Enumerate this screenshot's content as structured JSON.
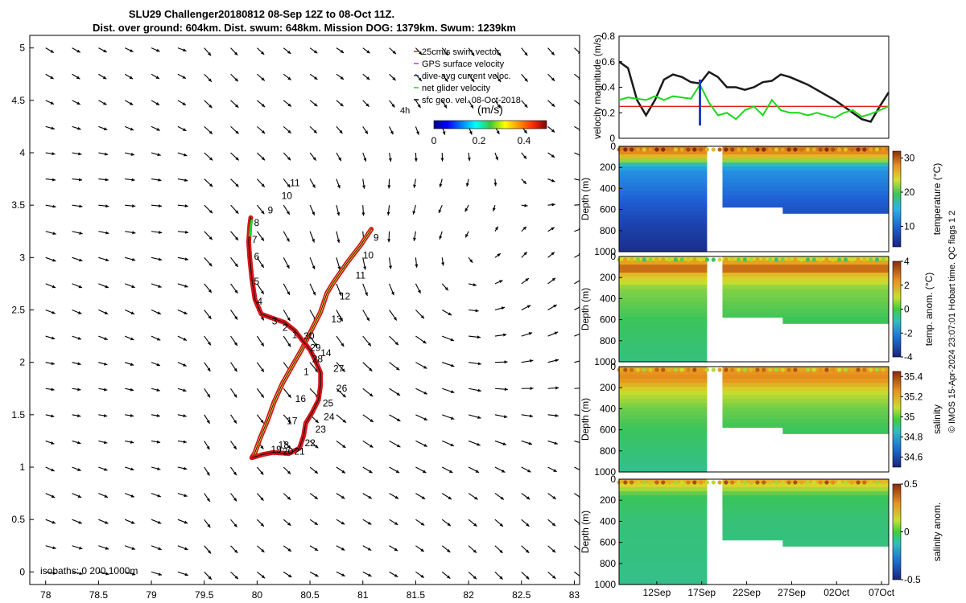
{
  "title": {
    "line1": "SLU29 Challenger20180812 08-Sep 12Z to 08-Oct 11Z.",
    "line2": "Dist. over ground: 604km. Dist. swum: 648km. Mission DOG: 1379km. Swum: 1239km"
  },
  "copyright": "© IMOS 15-Apr-2024 23:07:01 Hobart time. QC flags 1  2",
  "colors": {
    "track_fill": "#d8151b",
    "track_line": "#111111",
    "yellow_line": "#f4e43a",
    "green": "#19d919",
    "arrow": "#000000",
    "velocity_mag": "#1a1a1a",
    "swim": "#e02020",
    "dive_avg": "#1f3dcc"
  },
  "map": {
    "xticks": [
      "78",
      "78.5",
      "79",
      "79.5",
      "80",
      "80.5",
      "81",
      "81.5",
      "82",
      "82.5",
      "83"
    ],
    "yticks": [
      "0",
      "0.5",
      "1",
      "1.5",
      "2",
      "2.5",
      "3",
      "3.5",
      "4",
      "4.5",
      "5"
    ],
    "xlim": [
      77.85,
      83.05
    ],
    "ylim": [
      -0.12,
      5.12
    ],
    "isobaths_label": "isobaths: 0   200  1000m",
    "legend": [
      {
        "text": "25cm/s swim vector",
        "color": "#e02020"
      },
      {
        "text": "GPS surface velocity",
        "color": "#cc33cc"
      },
      {
        "text": "dive-avg current veloc.",
        "color": "#1f3dcc"
      },
      {
        "text": "net glider velocity",
        "color": "#19d919"
      },
      {
        "text": "sfc geo. vel. 08-Oct-2018",
        "color": "#000000"
      }
    ],
    "scale_label": "4h",
    "colorbar_label": "(m/s)",
    "colorbar_ticks": [
      "0",
      "0.2",
      "0.4"
    ],
    "colorbar_range": [
      0,
      0.5
    ],
    "track_labels": [
      "1",
      "2",
      "3",
      "4",
      "5",
      "6",
      "7",
      "8",
      "9",
      "10",
      "11",
      "9",
      "10",
      "11",
      "12",
      "13",
      "30",
      "29",
      "14",
      "28",
      "27",
      "26",
      "25",
      "24",
      "23",
      "22",
      "21",
      "20",
      "19",
      "18",
      "17",
      "16",
      "1"
    ]
  },
  "chart_data": [
    {
      "type": "line",
      "title": "",
      "ylabel": "velocity magnitude (m/s)",
      "ylim": [
        0,
        0.8
      ],
      "yticks": [
        "0",
        "0.2",
        "0.4",
        "0.6",
        "0.8"
      ],
      "x": [
        0,
        1,
        2,
        3,
        4,
        5,
        6,
        7,
        8,
        9,
        10,
        11,
        12,
        13,
        14,
        15,
        16,
        17,
        18,
        19,
        20,
        21,
        22,
        23,
        24,
        25,
        26,
        27,
        28,
        29,
        30
      ],
      "series": [
        {
          "values": [
            0.6,
            0.55,
            0.3,
            0.18,
            0.3,
            0.46,
            0.5,
            0.48,
            0.44,
            0.43,
            0.52,
            0.48,
            0.4,
            0.4,
            0.38,
            0.4,
            0.44,
            0.45,
            0.5,
            0.48,
            0.45,
            0.42,
            0.38,
            0.34,
            0.3,
            0.25,
            0.2,
            0.15,
            0.13,
            0.25,
            0.36
          ]
        },
        {
          "values": [
            0.25,
            0.25,
            0.25,
            0.25,
            0.25,
            0.25,
            0.25,
            0.25,
            0.25,
            0.25,
            0.25,
            0.25,
            0.25,
            0.25,
            0.25,
            0.25,
            0.25,
            0.25,
            0.25,
            0.25,
            0.25,
            0.25,
            0.25,
            0.25,
            0.25,
            0.25,
            0.25,
            0.25,
            0.25,
            0.25,
            0.25
          ]
        },
        {
          "values": [
            0.3,
            0.32,
            0.31,
            0.3,
            0.33,
            0.3,
            0.33,
            0.32,
            0.31,
            0.42,
            0.28,
            0.18,
            0.2,
            0.15,
            0.22,
            0.25,
            0.18,
            0.3,
            0.22,
            0.2,
            0.2,
            0.18,
            0.2,
            0.18,
            0.16,
            0.2,
            0.22,
            0.17,
            0.19,
            0.22,
            0.25
          ]
        }
      ]
    },
    {
      "type": "heatmap",
      "title": "",
      "ylabel": "Depth (m)",
      "colorbar_label": "temperature (°C)",
      "colorbar_ticks": [
        "10",
        "20",
        "30"
      ],
      "range": [
        4,
        32
      ],
      "yticks": [
        "0",
        "200",
        "400",
        "600",
        "800",
        "1000"
      ],
      "x_ticks": [
        "12Sep",
        "17Sep",
        "22Sep",
        "27Sep",
        "02Oct",
        "07Oct"
      ],
      "profile": [
        [
          0,
          29
        ],
        [
          60,
          28
        ],
        [
          120,
          24
        ],
        [
          160,
          18
        ],
        [
          220,
          13
        ],
        [
          400,
          11
        ],
        [
          600,
          8.5
        ],
        [
          800,
          6.5
        ],
        [
          1000,
          5
        ]
      ]
    },
    {
      "type": "heatmap",
      "title": "",
      "ylabel": "Depth (m)",
      "colorbar_label": "temp. anom. (°C)",
      "colorbar_ticks": [
        "-4",
        "-2",
        "0",
        "2",
        "4"
      ],
      "range": [
        -4,
        4
      ],
      "yticks": [
        "0",
        "200",
        "400",
        "600",
        "800",
        "1000"
      ],
      "x_ticks": [
        "12Sep",
        "17Sep",
        "22Sep",
        "27Sep",
        "02Oct",
        "07Oct"
      ],
      "profile": [
        [
          0,
          1.2
        ],
        [
          60,
          2.6
        ],
        [
          120,
          3.6
        ],
        [
          170,
          2.2
        ],
        [
          300,
          1.0
        ],
        [
          600,
          0.4
        ],
        [
          1000,
          0.1
        ]
      ]
    },
    {
      "type": "heatmap",
      "title": "",
      "ylabel": "Depth (m)",
      "colorbar_label": "salinity",
      "colorbar_ticks": [
        "34.6",
        "34.8",
        "35",
        "35.2",
        "35.4"
      ],
      "range": [
        34.5,
        35.45
      ],
      "yticks": [
        "0",
        "200",
        "400",
        "600",
        "800",
        "1000"
      ],
      "x_ticks": [
        "12Sep",
        "17Sep",
        "22Sep",
        "27Sep",
        "02Oct",
        "07Oct"
      ],
      "profile": [
        [
          0,
          35.25
        ],
        [
          80,
          35.32
        ],
        [
          130,
          35.3
        ],
        [
          250,
          35.15
        ],
        [
          400,
          35.07
        ],
        [
          600,
          35.02
        ],
        [
          1000,
          34.97
        ]
      ]
    },
    {
      "type": "heatmap",
      "title": "",
      "ylabel": "Depth (m)",
      "colorbar_label": "salinity anom.",
      "colorbar_ticks": [
        "-0.5",
        "0",
        "0.5"
      ],
      "range": [
        -0.5,
        0.5
      ],
      "yticks": [
        "0",
        "200",
        "400",
        "600",
        "800",
        "1000"
      ],
      "x_ticks": [
        "12Sep",
        "17Sep",
        "22Sep",
        "27Sep",
        "02Oct",
        "07Oct"
      ],
      "profile": [
        [
          0,
          0.32
        ],
        [
          80,
          0.18
        ],
        [
          160,
          0.05
        ],
        [
          400,
          0.02
        ],
        [
          1000,
          0.0
        ]
      ]
    }
  ]
}
